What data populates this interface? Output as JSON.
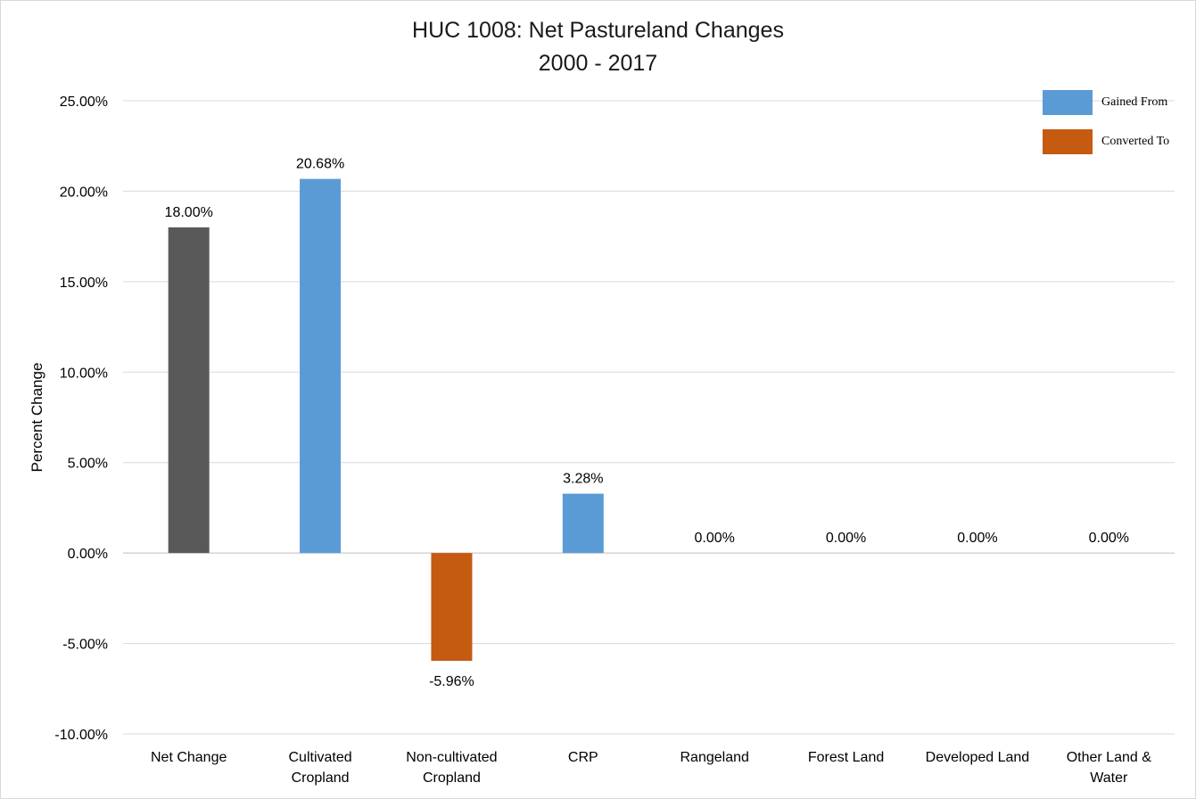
{
  "chart_data": {
    "type": "bar",
    "title": "HUC 1008: Net Pastureland Changes",
    "subtitle": "2000 - 2017",
    "xlabel": "",
    "ylabel": "Percent Change",
    "ylim": [
      -10,
      25
    ],
    "yticks": [
      "-10.00%",
      "-5.00%",
      "0.00%",
      "5.00%",
      "10.00%",
      "15.00%",
      "20.00%",
      "25.00%"
    ],
    "grid": true,
    "legend_position": "top-right",
    "categories": [
      [
        "Net Change"
      ],
      [
        "Cultivated",
        "Cropland"
      ],
      [
        "Non-cultivated",
        "Cropland"
      ],
      [
        "CRP"
      ],
      [
        "Rangeland"
      ],
      [
        "Forest Land"
      ],
      [
        "Developed Land"
      ],
      [
        "Other Land &",
        "Water"
      ]
    ],
    "values": [
      18.0,
      20.68,
      -5.96,
      3.28,
      0.0,
      0.0,
      0.0,
      0.0
    ],
    "data_labels": [
      "18.00%",
      "20.68%",
      "-5.96%",
      "3.28%",
      "0.00%",
      "0.00%",
      "0.00%",
      "0.00%"
    ],
    "bar_series": [
      "net",
      "gained",
      "converted",
      "gained",
      "gained",
      "gained",
      "gained",
      "gained"
    ],
    "legend": [
      {
        "name": "Gained From",
        "key": "gained",
        "color": "#5b9bd5"
      },
      {
        "name": "Converted To",
        "key": "converted",
        "color": "#c55a11"
      }
    ],
    "colors": {
      "net": "#595959",
      "gained": "#5b9bd5",
      "converted": "#c55a11",
      "grid": "#d9d9d9",
      "axis": "#bfbfbf"
    }
  }
}
